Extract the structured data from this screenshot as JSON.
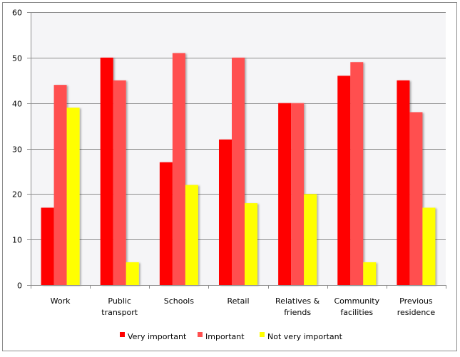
{
  "chart_data": {
    "type": "bar",
    "title": "",
    "xlabel": "",
    "ylabel": "",
    "ylim": [
      0,
      60
    ],
    "yticks": [
      "0",
      "10",
      "20",
      "30",
      "40",
      "50",
      "60"
    ],
    "grid": true,
    "legend_position": "bottom",
    "categories": [
      [
        "Work"
      ],
      [
        "Public",
        "transport"
      ],
      [
        "Schools"
      ],
      [
        "Retail"
      ],
      [
        "Relatives &",
        "friends"
      ],
      [
        "Community",
        "facilities"
      ],
      [
        "Previous",
        "residence"
      ]
    ],
    "series": [
      {
        "name": "Very important",
        "color": "#ff0000",
        "values": [
          17,
          50,
          27,
          32,
          40,
          46,
          45
        ]
      },
      {
        "name": "Important",
        "color": "#ff5050",
        "values": [
          44,
          45,
          51,
          50,
          40,
          49,
          38
        ]
      },
      {
        "name": "Not very important",
        "color": "#ffff00",
        "values": [
          39,
          5,
          22,
          18,
          20,
          5,
          17
        ]
      }
    ]
  }
}
